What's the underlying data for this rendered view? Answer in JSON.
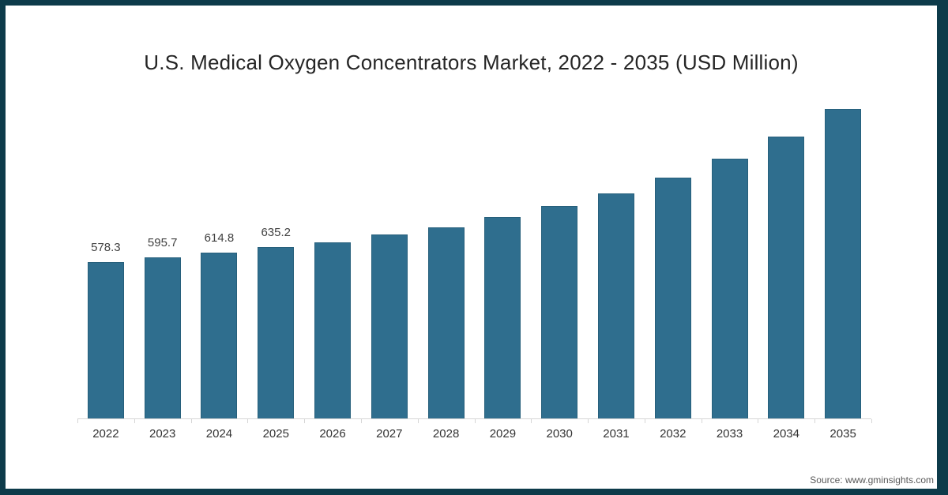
{
  "title": "U.S. Medical Oxygen Concentrators Market, 2022 - 2035 (USD Million)",
  "source": "Source: www.gminsights.com",
  "colors": {
    "bar": "#2F6E8E",
    "bar_border": "#27607C",
    "frame": "#0D3B4A",
    "axis": "#D6D6D6",
    "title_text": "#252525",
    "label_text": "#404040"
  },
  "chart_data": {
    "type": "bar",
    "title": "U.S. Medical Oxygen Concentrators Market, 2022 - 2035 (USD Million)",
    "categories": [
      "2022",
      "2023",
      "2024",
      "2025",
      "2026",
      "2027",
      "2028",
      "2029",
      "2030",
      "2031",
      "2032",
      "2033",
      "2034",
      "2035"
    ],
    "values": [
      578.3,
      595.7,
      614.8,
      635.2,
      652,
      680,
      707,
      746,
      786,
      833,
      891,
      960,
      1043,
      1145
    ],
    "data_labels": [
      "578.3",
      "595.7",
      "614.8",
      "635.2",
      "",
      "",
      "",
      "",
      "",
      "",
      "",
      "",
      "",
      ""
    ],
    "xlabel": "",
    "ylabel": "",
    "ylim": [
      0,
      1200
    ],
    "grid": false,
    "legend": false,
    "source": "Source: www.gminsights.com"
  }
}
